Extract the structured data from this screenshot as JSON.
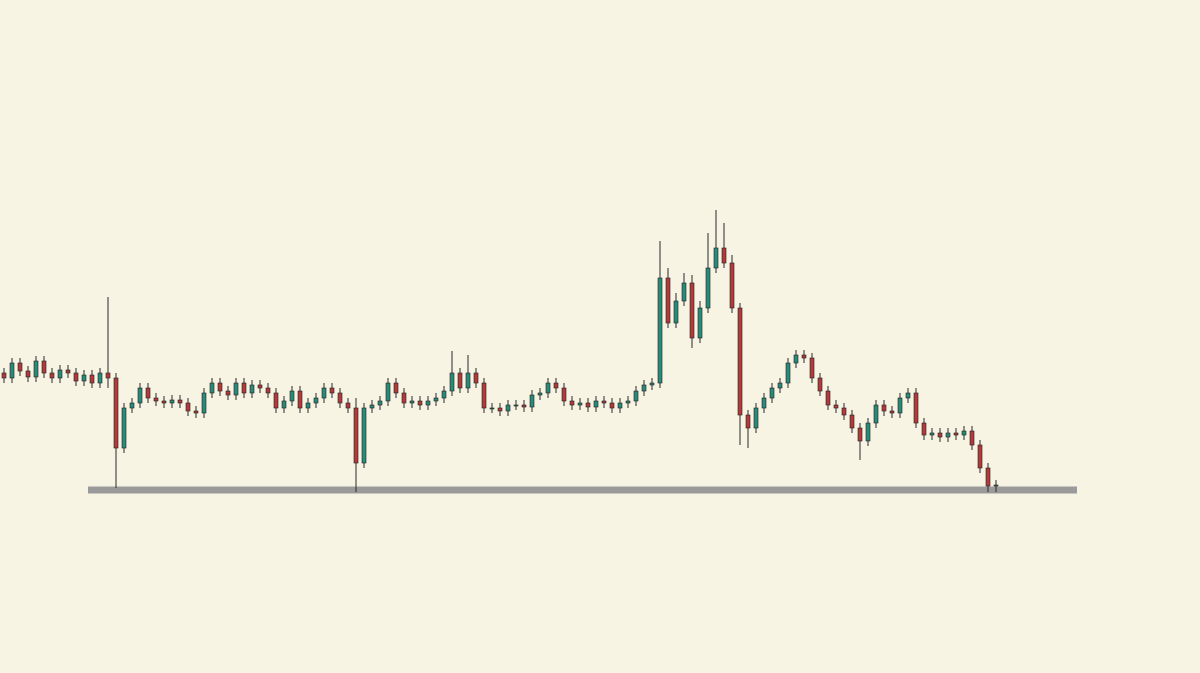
{
  "chart_data": {
    "type": "candlestick",
    "open": [
      300,
      295,
      310,
      302,
      296,
      312,
      300,
      295,
      303,
      300,
      292,
      298,
      290,
      300,
      295,
      225,
      265,
      270,
      285,
      275,
      272,
      270,
      273,
      270,
      262,
      260,
      280,
      290,
      282,
      278,
      290,
      280,
      288,
      285,
      280,
      265,
      272,
      282,
      265,
      270,
      275,
      285,
      280,
      270,
      265,
      210,
      265,
      268,
      272,
      290,
      280,
      270,
      272,
      268,
      272,
      275,
      282,
      300,
      285,
      300,
      290,
      265,
      265,
      262,
      268,
      268,
      266,
      278,
      280,
      290,
      285,
      272,
      268,
      270,
      266,
      272,
      270,
      265,
      270,
      272,
      282,
      288,
      290,
      395,
      350,
      372,
      390,
      335,
      365,
      405,
      425,
      410,
      365,
      258,
      245,
      265,
      275,
      285,
      290,
      310,
      318,
      315,
      295,
      282,
      268,
      265,
      258,
      245,
      232,
      250,
      268,
      262,
      260,
      275,
      280,
      250,
      238,
      240,
      236,
      240,
      238,
      242,
      228,
      205,
      187
    ],
    "high": [
      305,
      315,
      315,
      307,
      317,
      317,
      305,
      308,
      308,
      305,
      303,
      303,
      305,
      376,
      300,
      270,
      275,
      290,
      290,
      280,
      277,
      278,
      278,
      275,
      267,
      285,
      295,
      295,
      287,
      295,
      295,
      293,
      293,
      290,
      285,
      277,
      287,
      287,
      275,
      280,
      290,
      290,
      285,
      275,
      275,
      270,
      273,
      277,
      295,
      295,
      285,
      277,
      277,
      277,
      280,
      287,
      322,
      305,
      318,
      305,
      295,
      270,
      270,
      273,
      273,
      273,
      283,
      285,
      295,
      295,
      290,
      277,
      275,
      275,
      277,
      277,
      275,
      275,
      277,
      287,
      293,
      295,
      432,
      405,
      380,
      400,
      398,
      372,
      440,
      463,
      450,
      418,
      370,
      263,
      270,
      280,
      290,
      295,
      315,
      323,
      323,
      320,
      300,
      287,
      273,
      270,
      263,
      250,
      255,
      273,
      273,
      267,
      280,
      285,
      285,
      255,
      245,
      245,
      245,
      245,
      247,
      247,
      233,
      210,
      193
    ],
    "low": [
      290,
      290,
      297,
      291,
      291,
      295,
      290,
      290,
      295,
      287,
      287,
      285,
      285,
      285,
      185,
      220,
      260,
      265,
      270,
      267,
      265,
      265,
      265,
      257,
      255,
      255,
      275,
      277,
      273,
      273,
      275,
      275,
      280,
      275,
      260,
      260,
      267,
      260,
      260,
      265,
      270,
      275,
      265,
      260,
      181,
      205,
      260,
      263,
      267,
      275,
      265,
      265,
      263,
      263,
      267,
      270,
      277,
      280,
      280,
      285,
      260,
      260,
      257,
      257,
      263,
      261,
      261,
      273,
      275,
      280,
      267,
      263,
      263,
      261,
      261,
      265,
      260,
      260,
      265,
      267,
      277,
      283,
      285,
      345,
      345,
      367,
      325,
      330,
      360,
      400,
      405,
      360,
      228,
      225,
      240,
      260,
      270,
      280,
      285,
      305,
      310,
      290,
      277,
      263,
      260,
      253,
      240,
      213,
      227,
      245,
      257,
      255,
      255,
      270,
      245,
      233,
      233,
      231,
      231,
      233,
      233,
      223,
      200,
      181,
      181
    ],
    "close": [
      295,
      310,
      302,
      296,
      312,
      300,
      295,
      303,
      300,
      292,
      298,
      290,
      300,
      295,
      225,
      265,
      270,
      285,
      275,
      272,
      270,
      273,
      270,
      262,
      260,
      280,
      290,
      282,
      278,
      290,
      280,
      288,
      285,
      280,
      265,
      272,
      282,
      265,
      270,
      275,
      285,
      280,
      270,
      265,
      210,
      265,
      268,
      272,
      290,
      280,
      270,
      272,
      268,
      272,
      275,
      282,
      300,
      285,
      300,
      290,
      265,
      265,
      262,
      268,
      268,
      266,
      278,
      280,
      290,
      285,
      272,
      268,
      270,
      266,
      272,
      270,
      265,
      270,
      272,
      282,
      288,
      290,
      395,
      350,
      372,
      390,
      335,
      365,
      405,
      425,
      410,
      365,
      258,
      245,
      265,
      275,
      285,
      290,
      310,
      318,
      315,
      295,
      282,
      268,
      265,
      258,
      245,
      232,
      250,
      268,
      262,
      260,
      275,
      280,
      250,
      238,
      240,
      236,
      240,
      238,
      242,
      228,
      205,
      187,
      188
    ],
    "up_color": "#2b8a78",
    "down_color": "#b23a3a",
    "ylim": [
      0,
      673
    ],
    "hline": {
      "value": 183,
      "color": "#9a9a9a"
    }
  }
}
